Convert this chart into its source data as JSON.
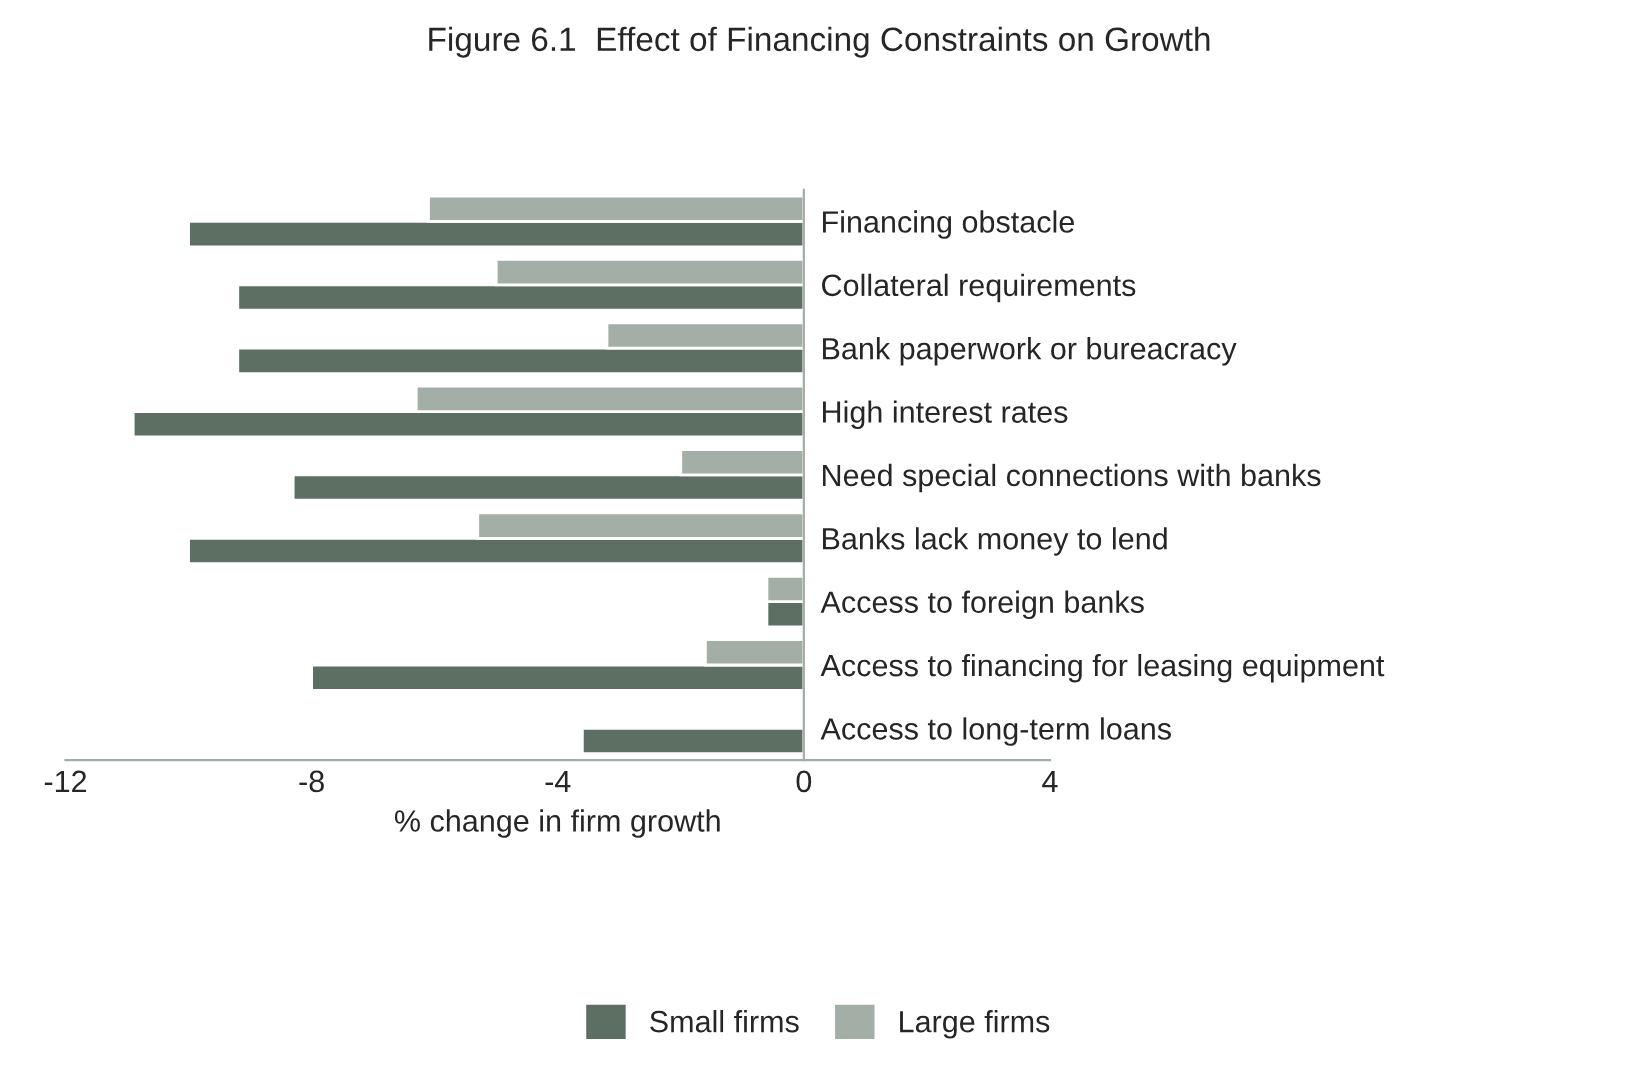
{
  "chart_data": {
    "type": "bar",
    "orientation": "horizontal",
    "title": "Figure 6.1  Effect of Financing Constraints on Growth",
    "xlabel": "% change in firm growth",
    "categories": [
      "Financing obstacle",
      "Collateral requirements",
      "Bank paperwork or bureacracy",
      "High interest rates",
      "Need special connections with banks",
      "Banks lack money to lend",
      "Access to foreign banks",
      "Access to financing for leasing equipment",
      "Access to long-term loans"
    ],
    "series": [
      {
        "name": "Small firms",
        "color": "#5d6e62",
        "values": [
          -10.0,
          -9.2,
          -9.2,
          -10.9,
          -8.3,
          -10.0,
          -0.6,
          -8.0,
          -3.6
        ]
      },
      {
        "name": "Large firms",
        "color": "#a3afa6",
        "values": [
          -6.1,
          -5.0,
          -3.2,
          -6.3,
          -2.0,
          -5.3,
          -0.6,
          -1.6,
          null
        ]
      }
    ],
    "xlim": [
      -12,
      4
    ],
    "xticks": [
      -12,
      -8,
      -4,
      0,
      4
    ],
    "grid": false,
    "legend": "bottom"
  }
}
